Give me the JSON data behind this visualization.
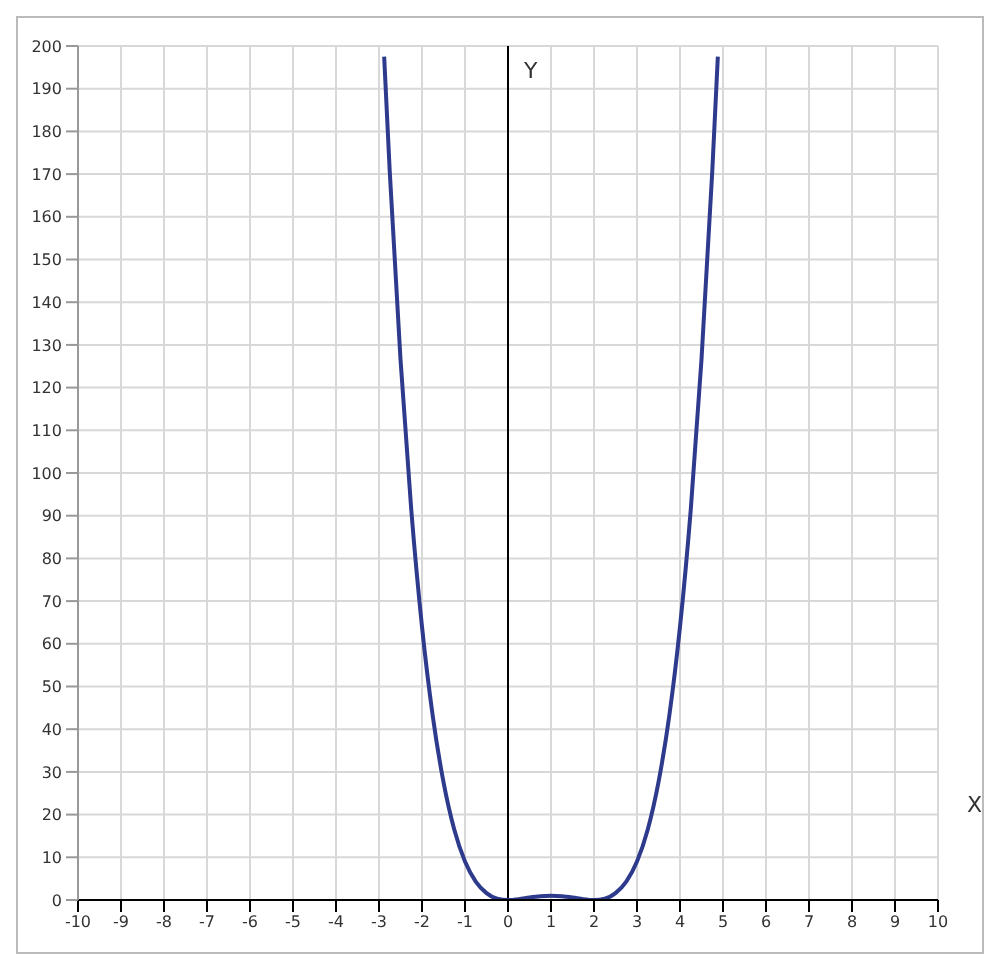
{
  "chart_data": {
    "type": "line",
    "xlabel": "X",
    "ylabel": "Y",
    "xlim": [
      -10,
      10
    ],
    "xticks": [
      -10,
      -9,
      -8,
      -7,
      -6,
      -5,
      -4,
      -3,
      -2,
      -1,
      0,
      1,
      2,
      3,
      4,
      5,
      6,
      7,
      8,
      9,
      10
    ],
    "ylim": [
      0,
      200
    ],
    "yticks": [
      0,
      10,
      20,
      30,
      40,
      50,
      60,
      70,
      80,
      90,
      100,
      110,
      120,
      130,
      140,
      150,
      160,
      170,
      180,
      190,
      200
    ],
    "grid": true,
    "marker": "none",
    "line_style": "solid",
    "ref_lines": [
      {
        "axis": "x",
        "value": 0,
        "color": "#000000"
      }
    ],
    "series": [
      {
        "color": "#2e3a8c",
        "x": [
          -2.88,
          -2.75,
          -2.5,
          -2.25,
          -2,
          -1.75,
          -1.5,
          -1.25,
          -1,
          -0.75,
          -0.5,
          -0.25,
          0,
          0.25,
          0.5,
          0.75,
          1,
          1.25,
          1.5,
          1.75,
          2,
          2.25,
          2.5,
          2.75,
          3,
          3.25,
          3.5,
          3.75,
          4,
          4.25,
          4.5,
          4.75,
          4.88
        ],
        "values": [
          197.5,
          170.6,
          126.6,
          91.4,
          64,
          43.1,
          27.6,
          16.5,
          9,
          4.3,
          1.6,
          0.3,
          0,
          0.2,
          0.6,
          0.9,
          1,
          0.9,
          0.6,
          0.2,
          0,
          0.3,
          1.6,
          4.3,
          9,
          16.5,
          27.6,
          43.1,
          64,
          91.4,
          126.6,
          170.6,
          197.5
        ]
      }
    ]
  }
}
